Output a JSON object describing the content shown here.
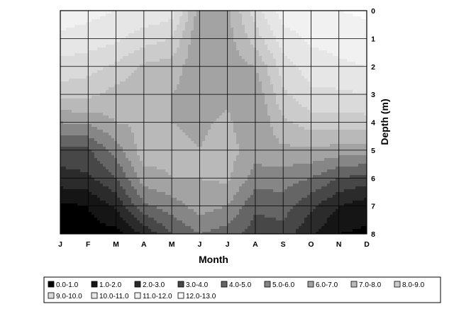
{
  "chart_data": {
    "type": "heatmap",
    "subtype": "filled-contour",
    "title": "",
    "xlabel": "Month",
    "ylabel": "Depth (m)",
    "x_categories": [
      "J",
      "F",
      "M",
      "A",
      "M",
      "J",
      "J",
      "A",
      "S",
      "O",
      "N",
      "D"
    ],
    "y_ticks": [
      "0",
      "1",
      "2",
      "3",
      "4",
      "5",
      "6",
      "7",
      "8"
    ],
    "ylim": [
      0,
      8
    ],
    "y_axis_position": "right",
    "y_inverted": true,
    "grid": true,
    "legend_position": "bottom",
    "legend": [
      {
        "label": "0.0-1.0",
        "color": "#000000"
      },
      {
        "label": "1.0-2.0",
        "color": "#151515"
      },
      {
        "label": "2.0-3.0",
        "color": "#2b2b2b"
      },
      {
        "label": "3.0-4.0",
        "color": "#474747"
      },
      {
        "label": "4.0-5.0",
        "color": "#656565"
      },
      {
        "label": "5.0-6.0",
        "color": "#868686"
      },
      {
        "label": "6.0-7.0",
        "color": "#a3a3a3"
      },
      {
        "label": "7.0-8.0",
        "color": "#b9b9b9"
      },
      {
        "label": "8.0-9.0",
        "color": "#cbcbcb"
      },
      {
        "label": "9.0-10.0",
        "color": "#dadada"
      },
      {
        "label": "10.0-11.0",
        "color": "#e6e6e6"
      },
      {
        "label": "11.0-12.0",
        "color": "#f1f1f1"
      },
      {
        "label": "12.0-13.0",
        "color": "#fbfbfb"
      }
    ],
    "depth_grid": [
      0,
      1,
      2,
      3,
      4,
      5,
      6,
      7,
      8
    ],
    "values_by_month": [
      [
        11.5,
        10.8,
        9.6,
        8.5,
        6.0,
        3.6,
        2.6,
        0.8,
        0.5
      ],
      [
        11.3,
        10.6,
        9.4,
        8.3,
        6.2,
        3.8,
        2.8,
        1.0,
        0.6
      ],
      [
        11.0,
        10.2,
        8.8,
        7.6,
        7.0,
        5.5,
        4.0,
        2.2,
        0.6
      ],
      [
        10.8,
        9.5,
        7.8,
        7.2,
        7.2,
        7.6,
        6.5,
        4.8,
        2.2
      ],
      [
        10.5,
        9.0,
        7.5,
        7.0,
        7.0,
        7.3,
        7.0,
        5.5,
        4.0
      ],
      [
        6.5,
        6.0,
        6.2,
        6.5,
        6.8,
        7.0,
        7.0,
        6.5,
        5.0
      ],
      [
        6.8,
        6.5,
        6.5,
        6.8,
        7.2,
        7.4,
        7.2,
        6.0,
        4.5
      ],
      [
        9.5,
        8.5,
        7.0,
        6.2,
        6.0,
        6.5,
        5.5,
        4.2,
        3.5
      ],
      [
        11.6,
        10.5,
        9.5,
        8.8,
        7.8,
        6.8,
        5.5,
        4.5,
        3.5
      ],
      [
        11.8,
        11.2,
        10.5,
        9.8,
        8.5,
        6.8,
        5.0,
        3.2,
        2.2
      ],
      [
        12.0,
        11.4,
        10.8,
        9.8,
        8.6,
        6.6,
        4.0,
        2.0,
        1.0
      ],
      [
        12.2,
        11.6,
        11.0,
        10.0,
        8.6,
        6.4,
        3.6,
        1.4,
        0.8
      ]
    ]
  }
}
